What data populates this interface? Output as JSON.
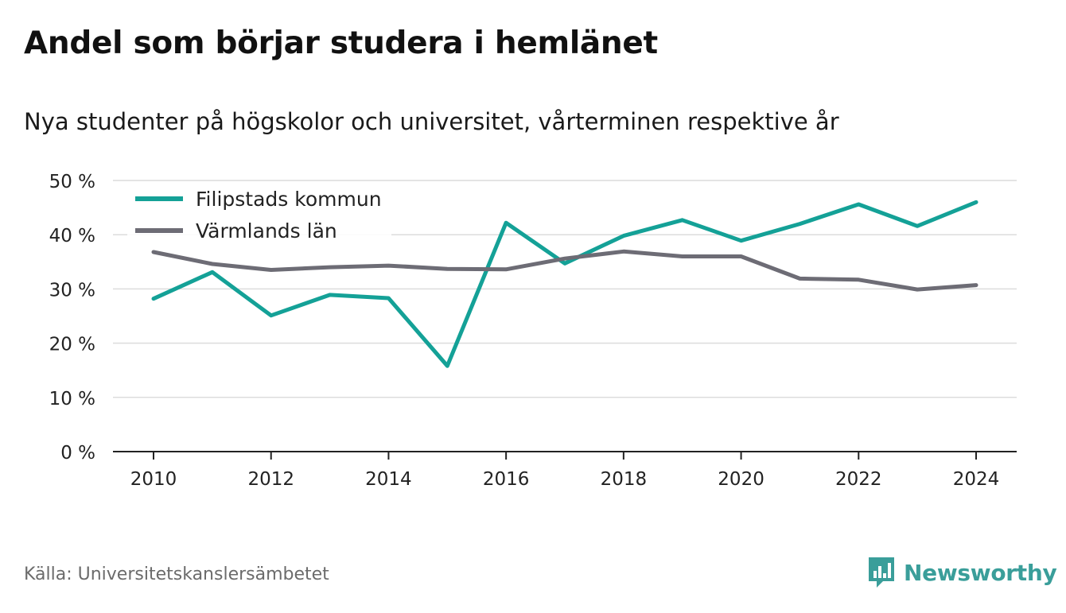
{
  "title": "Andel som börjar studera i hemlänet",
  "subtitle": "Nya studenter på högskolor och universitet, vårterminen respektive år",
  "source": "Källa: Universitetskanslersämbetet",
  "brand": {
    "name": "Newsworthy",
    "icon": "newsworthy-logo-icon",
    "color": "#3a9e9a"
  },
  "chart_data": {
    "type": "line",
    "x": [
      2010,
      2011,
      2012,
      2013,
      2014,
      2015,
      2016,
      2017,
      2018,
      2019,
      2020,
      2021,
      2022,
      2023,
      2024
    ],
    "x_ticks": [
      "2010",
      "2012",
      "2014",
      "2016",
      "2018",
      "2020",
      "2022",
      "2024"
    ],
    "y_ticks": [
      "0 %",
      "10 %",
      "20 %",
      "30 %",
      "40 %",
      "50 %"
    ],
    "ylim": [
      0,
      50
    ],
    "grid": true,
    "legend_position": "top-left",
    "series": [
      {
        "name": "Filipstads kommun",
        "color": "#14a197",
        "values": [
          28.2,
          33.1,
          25.1,
          28.9,
          28.3,
          15.8,
          42.2,
          34.7,
          39.8,
          42.7,
          38.9,
          42.0,
          45.6,
          41.6,
          46.0
        ]
      },
      {
        "name": "Värmlands län",
        "color": "#6d6c75",
        "values": [
          36.8,
          34.6,
          33.5,
          34.0,
          34.3,
          33.7,
          33.6,
          35.6,
          36.9,
          36.0,
          36.0,
          31.9,
          31.7,
          29.9,
          30.7
        ]
      }
    ]
  }
}
